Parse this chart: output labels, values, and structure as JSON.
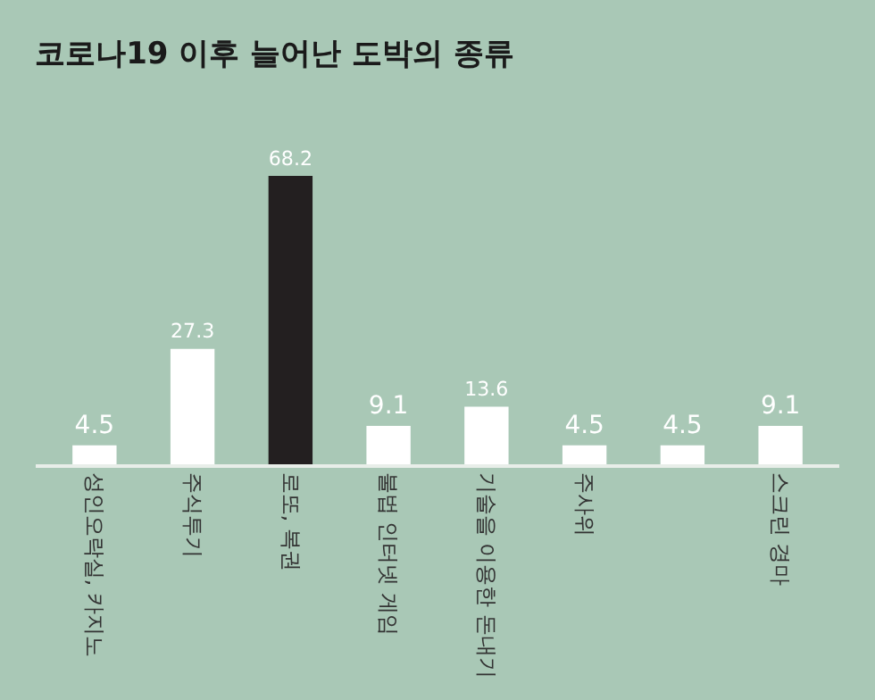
{
  "chart_data": {
    "type": "bar",
    "title": "코로나19 이후 늘어난 도박의 종류",
    "categories": [
      "성인오락실, 카지노",
      "주식투기",
      "로또, 복권",
      "불법 인터넷 게임",
      "기술을 이용한 돈내기",
      "주사위",
      null,
      "스크린 경마"
    ],
    "values": [
      4.5,
      27.3,
      68.2,
      9.1,
      13.6,
      4.5,
      4.5,
      9.1
    ],
    "colors": [
      "#ffffff",
      "#ffffff",
      "#231f20",
      "#ffffff",
      "#ffffff",
      "#ffffff",
      "#ffffff",
      "#ffffff"
    ],
    "data_labels": true,
    "tick_labels": "x",
    "grid": false
  }
}
